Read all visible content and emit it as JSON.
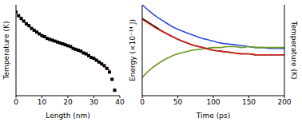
{
  "chart_data": [
    {
      "type": "scatter",
      "x_label": "Length (nm)",
      "y_label": "Temperature (K)",
      "xlim": [
        0,
        40
      ],
      "xticks": [
        0,
        10,
        20,
        30,
        40
      ],
      "ylim": [
        0,
        100
      ],
      "tick_labels": "x",
      "series": [
        {
          "type": "scatter",
          "marker": "square",
          "color": "#000000",
          "x": [
            0,
            1,
            2,
            3,
            4,
            5,
            6,
            7,
            8,
            9,
            10,
            11,
            12,
            13,
            14,
            15,
            16,
            17,
            18,
            19,
            20,
            21,
            22,
            23,
            24,
            25,
            26,
            27,
            28,
            29,
            30,
            31,
            32,
            33,
            34,
            35,
            36,
            37,
            38
          ],
          "values": [
            92,
            88,
            85,
            82,
            79,
            77,
            74,
            72,
            70,
            68,
            66,
            65,
            63,
            62,
            61,
            60,
            59,
            58,
            57,
            56,
            55,
            54,
            52,
            51,
            50,
            49,
            47,
            46,
            44,
            42,
            41,
            39,
            37,
            35,
            33,
            30,
            26,
            18,
            6
          ]
        },
        {
          "type": "line",
          "color": "#e0231c",
          "x": [
            2,
            10,
            20,
            30,
            36
          ],
          "values": [
            84,
            66,
            55,
            41,
            28
          ]
        }
      ]
    },
    {
      "type": "line",
      "x_label": "Time (ps)",
      "y_label": "Energy (×10⁻¹⁴ J)",
      "y2_label": "Temperature (K)",
      "xlim": [
        0,
        200
      ],
      "xticks": [
        0,
        50,
        100,
        150,
        200
      ],
      "ylim": [
        0,
        100
      ],
      "y2lim": [
        0,
        100
      ],
      "tick_labels": "x",
      "x": [
        0,
        10,
        20,
        30,
        40,
        50,
        60,
        70,
        80,
        90,
        100,
        110,
        120,
        130,
        140,
        150,
        160,
        170,
        180,
        190,
        200
      ],
      "series": [
        {
          "color": "#2f4fe0",
          "values": [
            100,
            93,
            87,
            82,
            77,
            73,
            70,
            67,
            64,
            62,
            60,
            58,
            57,
            56,
            55,
            54,
            53,
            53,
            52,
            52,
            52
          ]
        },
        {
          "color": "#6b9a1e",
          "values": [
            20,
            28,
            34,
            39,
            43,
            46,
            48,
            50,
            51,
            52,
            53,
            53,
            54,
            54,
            53,
            54,
            53,
            53,
            53,
            53,
            53
          ]
        },
        {
          "color": "#000000",
          "axis": "y2",
          "values": [
            85,
            80,
            75,
            70,
            66,
            62,
            59,
            56,
            54,
            52,
            50,
            49,
            48,
            47,
            46,
            46,
            45,
            45,
            45,
            45,
            45
          ]
        },
        {
          "color": "#e0231c",
          "axis": "y2",
          "values": [
            84,
            79,
            74,
            70,
            66,
            62,
            59,
            56,
            54,
            52,
            50,
            49,
            48,
            47,
            46,
            46,
            45,
            45,
            45,
            45,
            45
          ]
        }
      ]
    }
  ]
}
